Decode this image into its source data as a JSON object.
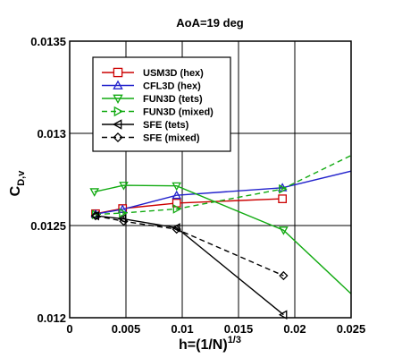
{
  "chart_data": {
    "type": "line",
    "title": "AoA=19 deg",
    "xlabel": {
      "base": "h=(1/N)",
      "sup": "1/3"
    },
    "ylabel": {
      "base": "C",
      "sub": "D,v"
    },
    "xlim": [
      0,
      0.025
    ],
    "ylim": [
      0.012,
      0.0135
    ],
    "xticks": [
      0,
      0.005,
      0.01,
      0.015,
      0.02,
      0.025
    ],
    "xtick_labels": [
      "0",
      "0.005",
      "0.01",
      "0.015",
      "0.02",
      "0.025"
    ],
    "yticks": [
      0.012,
      0.0125,
      0.013,
      0.0135
    ],
    "ytick_labels": [
      "0.012",
      "0.0125",
      "0.013",
      "0.0135"
    ],
    "grid": true,
    "legend_position": "top-left",
    "series": [
      {
        "name": "USM3D (hex)",
        "color": "#cc0000",
        "dash": "solid",
        "marker": "square",
        "x": [
          0.0023,
          0.0047,
          0.0095,
          0.0189
        ],
        "y": [
          0.012564,
          0.012592,
          0.012622,
          0.012645
        ]
      },
      {
        "name": "CFL3D (hex)",
        "color": "#2222cc",
        "dash": "solid",
        "marker": "triangle-up",
        "x": [
          0.0023,
          0.0047,
          0.0095,
          0.0189
        ],
        "y": [
          0.012562,
          0.012588,
          0.012664,
          0.012705
        ],
        "line_x": [
          0.0023,
          0.0047,
          0.0095,
          0.0189,
          0.025
        ],
        "line_y": [
          0.012562,
          0.012588,
          0.012664,
          0.012705,
          0.012795
        ]
      },
      {
        "name": "FUN3D (tets)",
        "color": "#11aa11",
        "dash": "solid",
        "marker": "triangle-down",
        "x": [
          0.0022,
          0.0048,
          0.0095,
          0.019
        ],
        "y": [
          0.012683,
          0.012718,
          0.012715,
          0.012475
        ],
        "line_x": [
          0.0022,
          0.0048,
          0.0095,
          0.019,
          0.025
        ],
        "line_y": [
          0.012683,
          0.012718,
          0.012715,
          0.012475,
          0.01213
        ]
      },
      {
        "name": "FUN3D (mixed)",
        "color": "#11aa11",
        "dash": "dashed",
        "marker": "triangle-right",
        "x": [
          0.0023,
          0.0047,
          0.0095,
          0.0189
        ],
        "y": [
          0.01256,
          0.012568,
          0.01259,
          0.012698
        ],
        "line_x": [
          0.0023,
          0.0047,
          0.0095,
          0.0189,
          0.025
        ],
        "line_y": [
          0.01256,
          0.012568,
          0.01259,
          0.012698,
          0.01288
        ]
      },
      {
        "name": "SFE (tets)",
        "color": "#000000",
        "dash": "solid",
        "marker": "triangle-left",
        "x": [
          0.0023,
          0.0047,
          0.0095,
          0.019
        ],
        "y": [
          0.012553,
          0.012537,
          0.012488,
          0.012016
        ]
      },
      {
        "name": "SFE (mixed)",
        "color": "#000000",
        "dash": "dashed",
        "marker": "diamond",
        "x": [
          0.0023,
          0.0048,
          0.0095,
          0.019
        ],
        "y": [
          0.012553,
          0.012523,
          0.01248,
          0.012228
        ]
      }
    ]
  }
}
